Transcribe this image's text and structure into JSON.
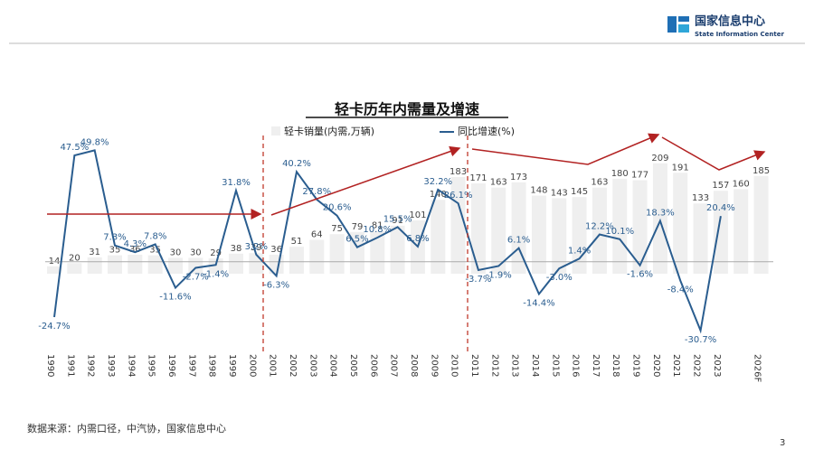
{
  "header": {
    "org": "国家信息中心",
    "org_en": "State Information Center"
  },
  "footer": {
    "source": "数据来源：内需口径，中汽协，国家信息中心",
    "page": "3"
  },
  "chart_data": {
    "type": "bar_line",
    "title": "轻卡历年内需量及增速",
    "categories": [
      "1990",
      "1991",
      "1992",
      "1993",
      "1994",
      "1995",
      "1996",
      "1997",
      "1998",
      "1999",
      "2000",
      "2001",
      "2002",
      "2003",
      "2004",
      "2005",
      "2006",
      "2007",
      "2008",
      "2009",
      "2010",
      "2011",
      "2012",
      "2013",
      "2014",
      "2015",
      "2016",
      "2017",
      "2018",
      "2019",
      "2020",
      "2021",
      "2022",
      "2023",
      null,
      "2026F"
    ],
    "ylim": [
      -130,
      260
    ],
    "y2lim": [
      -36,
      56
    ],
    "series": [
      {
        "name": "轻卡销量(内需,万辆)",
        "color": "#efefef",
        "values": [
          14,
          20,
          31,
          35,
          36,
          35,
          30,
          30,
          29,
          38,
          39,
          36,
          51,
          64,
          75,
          79,
          81,
          91,
          101,
          140,
          183,
          171,
          163,
          173,
          148,
          143,
          145,
          163,
          180,
          177,
          209,
          191,
          133,
          157,
          160,
          185
        ]
      },
      {
        "name": "同比增速(%)",
        "color": "#2a5d8f",
        "axis": "y2",
        "values": [
          -24.7,
          47.5,
          49.8,
          7.3,
          4.3,
          7.8,
          -11.6,
          -2.7,
          -1.4,
          31.8,
          3.2,
          -6.3,
          40.2,
          27.8,
          20.6,
          6.5,
          10.8,
          15.5,
          6.8,
          32.2,
          26.1,
          -3.7,
          -1.9,
          6.1,
          -14.4,
          -3.0,
          1.4,
          12.2,
          10.1,
          -1.6,
          18.3,
          -8.4,
          -30.7,
          20.4,
          null,
          null
        ],
        "value_labels": [
          "-24.7%",
          "47.5%",
          "49.8%",
          "7.3%",
          "4.3%",
          "7.8%",
          "-11.6%",
          "-2.7%",
          "-1.4%",
          "31.8%",
          "3.2%",
          "-6.3%",
          "40.2%",
          "27.8%",
          "20.6%",
          "6.5%",
          "10.8%",
          "15.5%",
          "6.8%",
          "32.2%",
          "26.1%",
          "-3.7%",
          "-1.9%",
          "6.1%",
          "-14.4%",
          "-3.0%",
          "1.4%",
          "12.2%",
          "10.1%",
          "-1.6%",
          "18.3%",
          "-8.4%",
          "-30.7%",
          "20.4%",
          null,
          null
        ]
      }
    ]
  }
}
